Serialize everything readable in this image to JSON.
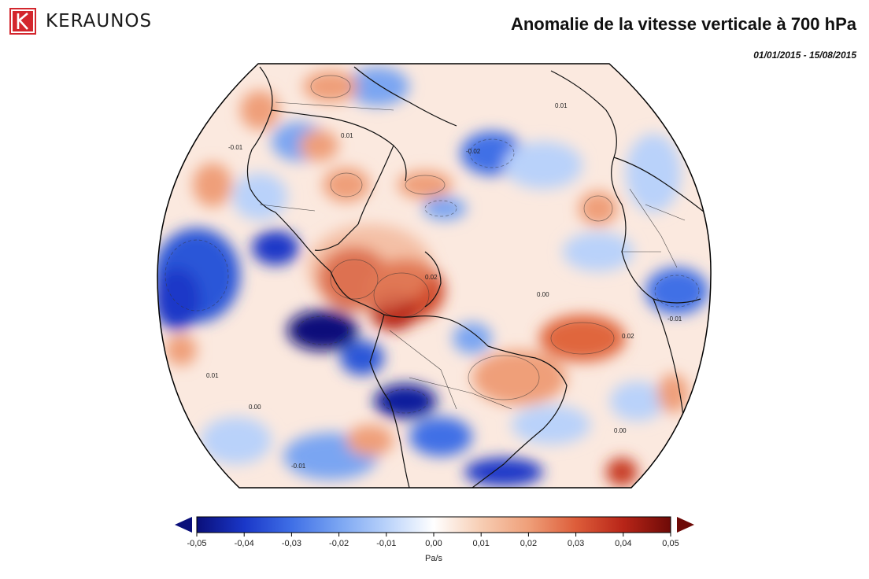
{
  "brand": {
    "name": "KERAUNOS",
    "color": "#d3262d"
  },
  "title": "Anomalie de la vitesse verticale à 700 hPa",
  "period": "01/01/2015 - 15/08/2015",
  "colorbar": {
    "ticks": [
      "-0,05",
      "-0,04",
      "-0,03",
      "-0,02",
      "-0,01",
      "0,00",
      "0,01",
      "0,02",
      "0,03",
      "0,04",
      "0,05"
    ],
    "unit": "Pa/s",
    "colors": [
      "#0a0f7a",
      "#1a37c8",
      "#3f6fe6",
      "#7aa5f2",
      "#b9d2fa",
      "#ffffff",
      "#f7cdb3",
      "#ef9f79",
      "#dd5d3a",
      "#b82518",
      "#6e0a07"
    ]
  },
  "contour_labels": [
    "0.01",
    "-0.01",
    "0.00",
    "0.02",
    "-0.02",
    "0.01",
    "0.00",
    "0.02",
    "-0.01",
    "0.01",
    "0.00",
    "-0.01"
  ]
}
